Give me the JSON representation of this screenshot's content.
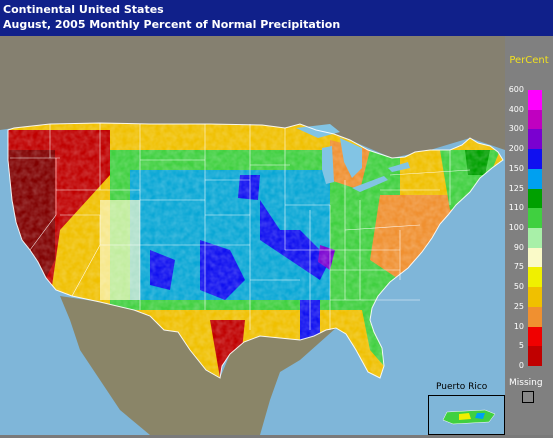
{
  "header": {
    "title": "Continental United States",
    "subtitle": "August, 2005 Monthly Percent of Normal Precipitation"
  },
  "legend": {
    "title": "PerCent",
    "entries": [
      {
        "label": "600",
        "color": "#ff00ff"
      },
      {
        "label": "400",
        "color": "#c000c0"
      },
      {
        "label": "300",
        "color": "#7a00d0"
      },
      {
        "label": "200",
        "color": "#1010f0"
      },
      {
        "label": "150",
        "color": "#00a0f0"
      },
      {
        "label": "125",
        "color": "#00a000"
      },
      {
        "label": "110",
        "color": "#40d040"
      },
      {
        "label": "100",
        "color": "#a8f0a8"
      },
      {
        "label": "90",
        "color": "#fafac8"
      },
      {
        "label": "75",
        "color": "#f0f000"
      },
      {
        "label": "50",
        "color": "#f0c000"
      },
      {
        "label": "25",
        "color": "#f09030"
      },
      {
        "label": "10",
        "color": "#f00000"
      },
      {
        "label": "5",
        "color": "#c00000"
      },
      {
        "label": "0",
        "color": "#800000"
      }
    ],
    "missing_label": "Missing",
    "missing_color": "#888888"
  },
  "inset": {
    "label": "Puerto Rico"
  },
  "colors": {
    "header_bg": "#10208a",
    "ocean": "#7fb6d9",
    "lakes": "#82c4e4",
    "land": "#9a9478",
    "mexico": "#8a8568",
    "canada": "#858070",
    "boundaries": "#ffffff"
  }
}
